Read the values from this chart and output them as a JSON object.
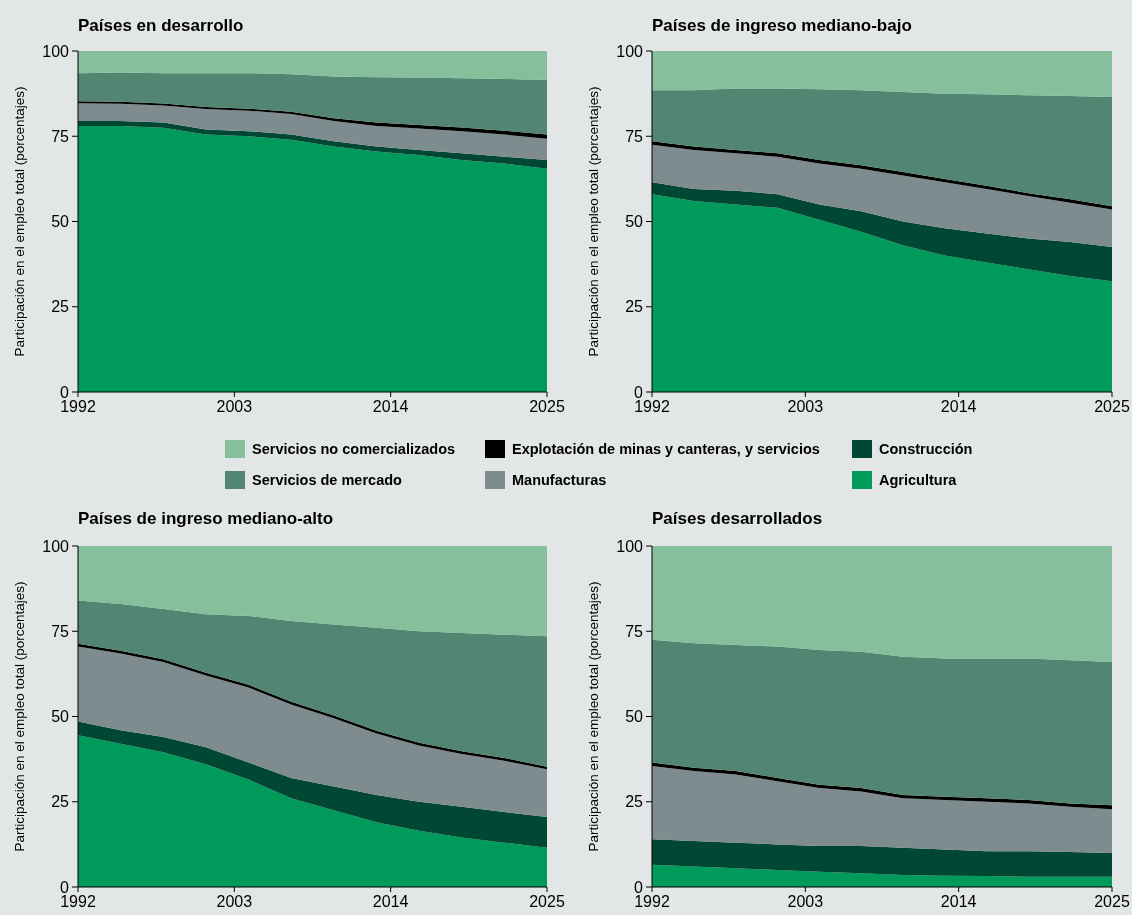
{
  "chart_data": [
    {
      "type": "area",
      "title": "Países en desarrollo",
      "ylabel": "Participación en el empleo total (porcentajes)",
      "x": [
        1992,
        1995,
        1998,
        2001,
        2004,
        2007,
        2010,
        2013,
        2016,
        2019,
        2022,
        2025
      ],
      "xlim": [
        1992,
        2025
      ],
      "xticks": [
        1992,
        2003,
        2014,
        2025
      ],
      "ylim": [
        0,
        100
      ],
      "yticks": [
        0,
        25,
        50,
        75,
        100
      ],
      "stacked": true,
      "legend": "bottom",
      "series": [
        {
          "name": "Agricultura",
          "color": "#009a5b",
          "values": [
            78,
            78,
            77.5,
            75.5,
            75,
            74,
            72,
            70.5,
            69.5,
            68,
            67,
            65.5
          ]
        },
        {
          "name": "Construcción",
          "color": "#004833",
          "values": [
            1.5,
            1.5,
            1.5,
            1.5,
            1.5,
            1.5,
            1.5,
            1.5,
            1.5,
            2,
            2,
            2.5
          ]
        },
        {
          "name": "Manufacturas",
          "color": "#7f8c8f",
          "values": [
            5.2,
            5,
            5,
            6,
            6,
            6,
            6,
            6,
            6.3,
            6.5,
            6.5,
            6.3
          ]
        },
        {
          "name": "Explotación de minas y canteras, y servicios",
          "color": "#000000",
          "values": [
            0.6,
            0.6,
            0.6,
            0.6,
            0.6,
            0.7,
            0.8,
            1,
            1,
            1.1,
            1.1,
            1.2
          ]
        },
        {
          "name": "Servicios de mercado",
          "color": "#528672",
          "values": [
            8.2,
            8.6,
            8.9,
            9.9,
            10.4,
            11,
            12.2,
            13.3,
            13.9,
            14.4,
            15.2,
            16
          ]
        },
        {
          "name": "Servicios no comercializados",
          "color": "#86bf9b",
          "values": [
            6.5,
            6.3,
            6.5,
            6.5,
            6.5,
            6.8,
            7.5,
            7.7,
            7.8,
            8,
            8.2,
            8.5
          ]
        }
      ]
    },
    {
      "type": "area",
      "title": "Países de ingreso mediano-bajo",
      "ylabel": "Participación en el empleo total (porcentajes)",
      "x": [
        1992,
        1995,
        1998,
        2001,
        2004,
        2007,
        2010,
        2013,
        2016,
        2019,
        2022,
        2025
      ],
      "xlim": [
        1992,
        2025
      ],
      "xticks": [
        1992,
        2003,
        2014,
        2025
      ],
      "ylim": [
        0,
        100
      ],
      "yticks": [
        0,
        25,
        50,
        75,
        100
      ],
      "stacked": true,
      "series": [
        {
          "color": "#009a5b",
          "values": [
            58,
            56,
            55,
            54,
            50.5,
            47,
            43,
            40,
            38,
            36,
            34,
            32.5
          ]
        },
        {
          "color": "#004833",
          "values": [
            3.5,
            3.5,
            4,
            4,
            4.5,
            6,
            7,
            8,
            8.5,
            9,
            10,
            10
          ]
        },
        {
          "color": "#7f8c8f",
          "values": [
            11,
            11.5,
            11,
            11,
            12,
            12.5,
            13.5,
            13.5,
            13,
            12.5,
            11.5,
            11
          ]
        },
        {
          "color": "#000000",
          "values": [
            1,
            1,
            1,
            1,
            1,
            1,
            1,
            1,
            1,
            0.8,
            1,
            1
          ]
        },
        {
          "color": "#528672",
          "values": [
            15,
            16.5,
            18,
            19,
            20.8,
            22,
            23.5,
            25,
            26.8,
            28.7,
            30.3,
            32
          ]
        },
        {
          "color": "#86bf9b",
          "values": [
            11.5,
            11.5,
            11,
            11,
            11.2,
            11.5,
            12,
            12.5,
            12.7,
            13,
            13.2,
            13.5
          ]
        }
      ]
    },
    {
      "type": "area",
      "title": "Países de ingreso mediano-alto",
      "ylabel": "Participación en el empleo total (porcentajes)",
      "x": [
        1992,
        1995,
        1998,
        2001,
        2004,
        2007,
        2010,
        2013,
        2016,
        2019,
        2022,
        2025
      ],
      "xlim": [
        1992,
        2025
      ],
      "xticks": [
        1992,
        2003,
        2014,
        2025
      ],
      "ylim": [
        0,
        100
      ],
      "yticks": [
        0,
        25,
        50,
        75,
        100
      ],
      "stacked": true,
      "series": [
        {
          "color": "#009a5b",
          "values": [
            44.5,
            42,
            39.5,
            36,
            31.5,
            26,
            22.5,
            19,
            16.5,
            14.5,
            13,
            11.5
          ]
        },
        {
          "color": "#004833",
          "values": [
            4,
            4,
            4.5,
            5,
            5,
            6,
            7,
            8,
            8.5,
            9,
            9,
            9
          ]
        },
        {
          "color": "#7f8c8f",
          "values": [
            22,
            22.5,
            22,
            21,
            22,
            21.5,
            20,
            18,
            16.5,
            15.5,
            15,
            14
          ]
        },
        {
          "color": "#000000",
          "values": [
            0.8,
            0.8,
            0.8,
            0.8,
            0.8,
            0.8,
            0.8,
            0.8,
            0.8,
            0.8,
            0.8,
            0.8
          ]
        },
        {
          "color": "#528672",
          "values": [
            12.7,
            13.7,
            14.7,
            17.2,
            20.2,
            23.7,
            26.7,
            30.2,
            32.7,
            34.7,
            36.2,
            38.2
          ]
        },
        {
          "color": "#86bf9b",
          "values": [
            16,
            17,
            18.5,
            20,
            20.5,
            22,
            23,
            24,
            25,
            25.5,
            26,
            26.5
          ]
        }
      ]
    },
    {
      "type": "area",
      "title": "Países desarrollados",
      "ylabel": "Participación en el empleo total (porcentajes)",
      "x": [
        1992,
        1995,
        1998,
        2001,
        2004,
        2007,
        2010,
        2013,
        2016,
        2019,
        2022,
        2025
      ],
      "xlim": [
        1992,
        2025
      ],
      "xticks": [
        1992,
        2003,
        2014,
        2025
      ],
      "ylim": [
        0,
        100
      ],
      "yticks": [
        0,
        25,
        50,
        75,
        100
      ],
      "stacked": true,
      "series": [
        {
          "color": "#009a5b",
          "values": [
            6.5,
            6,
            5.5,
            5,
            4.5,
            4,
            3.5,
            3.3,
            3.2,
            3,
            3,
            3
          ]
        },
        {
          "color": "#004833",
          "values": [
            7.5,
            7.5,
            7.5,
            7.5,
            7.5,
            8,
            8,
            7.7,
            7.3,
            7.5,
            7.3,
            7
          ]
        },
        {
          "color": "#7f8c8f",
          "values": [
            21.5,
            20.5,
            20,
            18.5,
            17,
            16,
            14.5,
            14.5,
            14.5,
            14,
            13.2,
            12.8
          ]
        },
        {
          "color": "#000000",
          "values": [
            1,
            1,
            1,
            1,
            1,
            1,
            1,
            1,
            1,
            1,
            1,
            1.2
          ]
        },
        {
          "color": "#528672",
          "values": [
            36,
            36.5,
            37,
            38.5,
            39.5,
            40,
            40.5,
            40.5,
            41,
            41.5,
            42,
            42
          ]
        },
        {
          "color": "#86bf9b",
          "values": [
            27.5,
            28.5,
            29,
            29.5,
            30.5,
            31,
            32.5,
            33,
            33,
            33,
            33.5,
            34
          ]
        }
      ]
    }
  ]
}
